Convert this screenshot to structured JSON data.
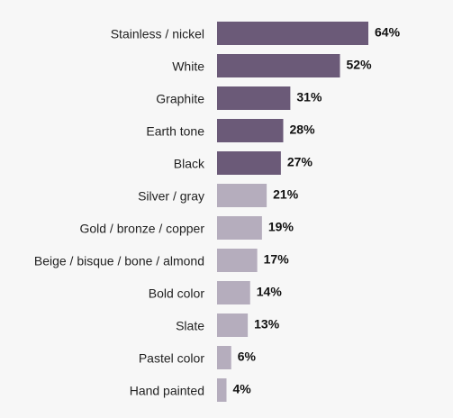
{
  "chart_data": {
    "type": "hbar",
    "categories": [
      "Stainless / nickel",
      "White",
      "Graphite",
      "Earth tone",
      "Black",
      "Silver / gray",
      "Gold / bronze / copper",
      "Beige / bisque / bone / almond",
      "Bold color",
      "Slate",
      "Pastel color",
      "Hand painted"
    ],
    "values": [
      64,
      52,
      31,
      28,
      27,
      21,
      19,
      17,
      14,
      13,
      6,
      4
    ],
    "value_labels": [
      "64%",
      "52%",
      "31%",
      "28%",
      "27%",
      "21%",
      "19%",
      "17%",
      "14%",
      "13%",
      "6%",
      "4%"
    ],
    "colors": [
      "#6b5a78",
      "#6b5a78",
      "#6b5a78",
      "#6b5a78",
      "#6b5a78",
      "#b5adbd",
      "#b5adbd",
      "#b5adbd",
      "#b5adbd",
      "#b5adbd",
      "#b5adbd",
      "#b5adbd"
    ]
  }
}
